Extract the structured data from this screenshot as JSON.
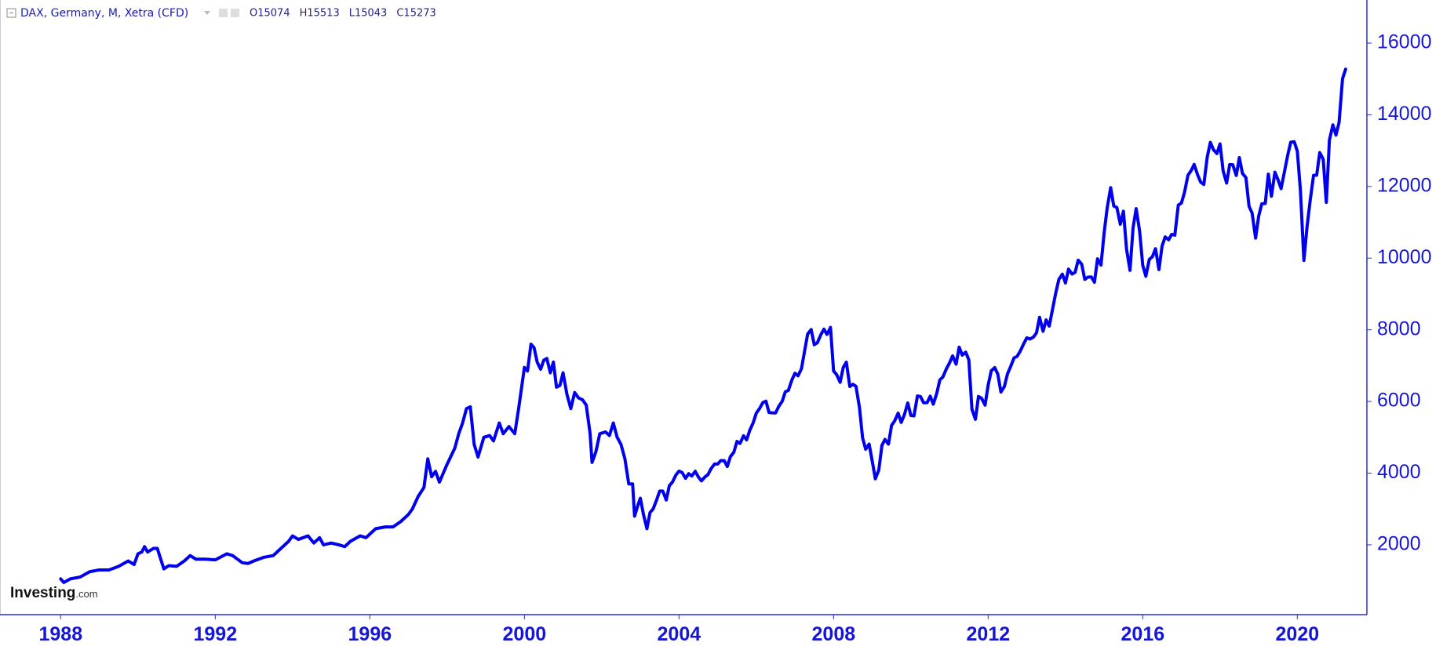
{
  "header": {
    "symbol": "DAX, Germany, M, Xetra (CFD)",
    "ohlc": [
      "O15074",
      "H15513",
      "L15043",
      "C15273"
    ]
  },
  "logo": {
    "name": "Investing",
    "suffix": ".com"
  },
  "chart_data": {
    "type": "line",
    "xlim": [
      1986.43,
      2021.8
    ],
    "ylim": [
      52,
      17203
    ],
    "xticks": [
      1988,
      1992,
      1996,
      2000,
      2004,
      2008,
      2012,
      2016,
      2020
    ],
    "yticks": [
      2000,
      4000,
      6000,
      8000,
      10000,
      12000,
      14000,
      16000
    ],
    "grid": false,
    "x": [
      1988.0,
      1988.08,
      1988.25,
      1988.5,
      1988.75,
      1989.0,
      1989.25,
      1989.5,
      1989.75,
      1989.9,
      1990.0,
      1990.1,
      1990.17,
      1990.25,
      1990.4,
      1990.5,
      1990.67,
      1990.8,
      1991.0,
      1991.2,
      1991.35,
      1991.5,
      1991.75,
      1992.0,
      1992.3,
      1992.45,
      1992.7,
      1992.85,
      1993.0,
      1993.25,
      1993.5,
      1993.7,
      1993.9,
      1994.0,
      1994.15,
      1994.4,
      1994.55,
      1994.7,
      1994.8,
      1995.0,
      1995.2,
      1995.35,
      1995.5,
      1995.75,
      1995.9,
      1996.0,
      1996.15,
      1996.4,
      1996.6,
      1996.8,
      1997.0,
      1997.1,
      1997.25,
      1997.4,
      1997.5,
      1997.6,
      1997.7,
      1997.8,
      1998.0,
      1998.2,
      1998.3,
      1998.4,
      1998.5,
      1998.6,
      1998.7,
      1998.8,
      1998.95,
      1999.1,
      1999.2,
      1999.35,
      1999.45,
      1999.6,
      1999.75,
      1999.85,
      2000.0,
      2000.08,
      2000.17,
      2000.25,
      2000.33,
      2000.42,
      2000.5,
      2000.58,
      2000.67,
      2000.75,
      2000.83,
      2000.92,
      2001.0,
      2001.1,
      2001.2,
      2001.3,
      2001.4,
      2001.5,
      2001.6,
      2001.7,
      2001.75,
      2001.85,
      2001.95,
      2002.1,
      2002.2,
      2002.3,
      2002.4,
      2002.5,
      2002.6,
      2002.7,
      2002.8,
      2002.85,
      2002.95,
      2003.0,
      2003.08,
      2003.17,
      2003.25,
      2003.33,
      2003.42,
      2003.5,
      2003.58,
      2003.67,
      2003.75,
      2003.83,
      2003.92,
      2004.0,
      2004.08,
      2004.17,
      2004.25,
      2004.33,
      2004.42,
      2004.5,
      2004.58,
      2004.67,
      2004.75,
      2004.83,
      2004.92,
      2005.0,
      2005.08,
      2005.17,
      2005.25,
      2005.33,
      2005.42,
      2005.5,
      2005.58,
      2005.67,
      2005.75,
      2005.83,
      2005.92,
      2006.0,
      2006.08,
      2006.17,
      2006.25,
      2006.33,
      2006.42,
      2006.5,
      2006.58,
      2006.67,
      2006.75,
      2006.83,
      2006.92,
      2007.0,
      2007.08,
      2007.17,
      2007.25,
      2007.33,
      2007.42,
      2007.5,
      2007.58,
      2007.67,
      2007.75,
      2007.83,
      2007.92,
      2008.0,
      2008.08,
      2008.17,
      2008.25,
      2008.33,
      2008.42,
      2008.5,
      2008.58,
      2008.67,
      2008.75,
      2008.83,
      2008.92,
      2009.0,
      2009.08,
      2009.17,
      2009.25,
      2009.33,
      2009.42,
      2009.5,
      2009.58,
      2009.67,
      2009.75,
      2009.83,
      2009.92,
      2010.0,
      2010.08,
      2010.17,
      2010.25,
      2010.33,
      2010.42,
      2010.5,
      2010.58,
      2010.67,
      2010.75,
      2010.83,
      2010.92,
      2011.0,
      2011.08,
      2011.17,
      2011.25,
      2011.33,
      2011.42,
      2011.5,
      2011.58,
      2011.67,
      2011.75,
      2011.83,
      2011.92,
      2012.0,
      2012.08,
      2012.17,
      2012.25,
      2012.33,
      2012.42,
      2012.5,
      2012.58,
      2012.67,
      2012.75,
      2012.83,
      2012.92,
      2013.0,
      2013.08,
      2013.17,
      2013.25,
      2013.33,
      2013.42,
      2013.5,
      2013.58,
      2013.67,
      2013.75,
      2013.83,
      2013.92,
      2014.0,
      2014.08,
      2014.17,
      2014.25,
      2014.33,
      2014.42,
      2014.5,
      2014.58,
      2014.67,
      2014.75,
      2014.83,
      2014.92,
      2015.0,
      2015.08,
      2015.17,
      2015.25,
      2015.33,
      2015.42,
      2015.5,
      2015.58,
      2015.67,
      2015.75,
      2015.83,
      2015.92,
      2016.0,
      2016.08,
      2016.17,
      2016.25,
      2016.33,
      2016.42,
      2016.5,
      2016.58,
      2016.67,
      2016.75,
      2016.83,
      2016.92,
      2017.0,
      2017.08,
      2017.17,
      2017.25,
      2017.33,
      2017.42,
      2017.5,
      2017.58,
      2017.67,
      2017.75,
      2017.83,
      2017.92,
      2018.0,
      2018.08,
      2018.17,
      2018.25,
      2018.33,
      2018.42,
      2018.5,
      2018.58,
      2018.67,
      2018.75,
      2018.83,
      2018.92,
      2019.0,
      2019.08,
      2019.17,
      2019.25,
      2019.33,
      2019.42,
      2019.5,
      2019.58,
      2019.67,
      2019.75,
      2019.83,
      2019.92,
      2020.0,
      2020.08,
      2020.17,
      2020.25,
      2020.33,
      2020.42,
      2020.5,
      2020.58,
      2020.67,
      2020.75,
      2020.83,
      2020.92,
      2021.0,
      2021.08,
      2021.17,
      2021.25
    ],
    "series": [
      {
        "name": "DAX",
        "color": "#0000ee",
        "values": [
          1050,
          950,
          1050,
          1100,
          1250,
          1300,
          1300,
          1400,
          1550,
          1450,
          1750,
          1800,
          1950,
          1800,
          1900,
          1900,
          1330,
          1420,
          1400,
          1550,
          1700,
          1600,
          1600,
          1580,
          1750,
          1700,
          1500,
          1480,
          1550,
          1650,
          1700,
          1900,
          2100,
          2250,
          2150,
          2250,
          2050,
          2200,
          2000,
          2050,
          2000,
          1950,
          2100,
          2250,
          2200,
          2300,
          2450,
          2500,
          2500,
          2650,
          2850,
          3000,
          3350,
          3600,
          4400,
          3900,
          4050,
          3750,
          4250,
          4700,
          5100,
          5400,
          5800,
          5850,
          4800,
          4450,
          5000,
          5050,
          4900,
          5400,
          5100,
          5300,
          5100,
          5800,
          6950,
          6850,
          7600,
          7500,
          7100,
          6900,
          7150,
          7200,
          6800,
          7100,
          6400,
          6450,
          6800,
          6200,
          5800,
          6250,
          6100,
          6050,
          5900,
          5100,
          4300,
          4600,
          5100,
          5150,
          5050,
          5400,
          5000,
          4800,
          4400,
          3700,
          3700,
          2800,
          3150,
          3300,
          2850,
          2450,
          2900,
          3000,
          3250,
          3500,
          3500,
          3250,
          3650,
          3750,
          3950,
          4058,
          4018,
          3856,
          3985,
          3921,
          4052,
          3895,
          3785,
          3893,
          3960,
          4126,
          4256,
          4254,
          4350,
          4348,
          4185,
          4460,
          4586,
          4886,
          4830,
          5044,
          4929,
          5193,
          5408,
          5674,
          5796,
          5970,
          6009,
          5692,
          5683,
          5681,
          5859,
          6004,
          6268,
          6309,
          6597,
          6789,
          6716,
          6917,
          7409,
          7883,
          8007,
          7584,
          7638,
          7862,
          8019,
          7871,
          8067,
          6851,
          6748,
          6535,
          6949,
          7096,
          6418,
          6479,
          6422,
          5831,
          4988,
          4669,
          4810,
          4338,
          3843,
          4085,
          4770,
          4941,
          4809,
          5332,
          5458,
          5675,
          5415,
          5625,
          5957,
          5608,
          5598,
          6154,
          6136,
          5965,
          5966,
          6148,
          5925,
          6229,
          6601,
          6688,
          6914,
          7077,
          7272,
          7041,
          7514,
          7294,
          7376,
          7159,
          5785,
          5502,
          6141,
          6089,
          5898,
          6458,
          6856,
          6947,
          6761,
          6264,
          6416,
          6772,
          6970,
          7216,
          7260,
          7405,
          7612,
          7776,
          7742,
          7795,
          7914,
          8349,
          7959,
          8276,
          8104,
          8594,
          9033,
          9406,
          9552,
          9306,
          9692,
          9556,
          9603,
          9943,
          9833,
          9407,
          9470,
          9474,
          9327,
          9981,
          9806,
          10694,
          11402,
          11966,
          11454,
          11413,
          10945,
          11309,
          10259,
          9660,
          10850,
          11382,
          10743,
          9798,
          9495,
          9965,
          10039,
          10263,
          9680,
          10337,
          10592,
          10511,
          10665,
          10640,
          11481,
          11535,
          11834,
          12313,
          12438,
          12615,
          12325,
          12118,
          12055,
          12829,
          13230,
          13024,
          12918,
          13189,
          12436,
          12097,
          12612,
          12605,
          12306,
          12806,
          12364,
          12247,
          11448,
          11257,
          10559,
          11173,
          11516,
          11526,
          12344,
          11727,
          12399,
          12189,
          11939,
          12428,
          12867,
          13236,
          13249,
          12982,
          11890,
          9936,
          10862,
          11587,
          12311,
          12313,
          12945,
          12761,
          11556,
          13291,
          13719,
          13433,
          13786,
          15008,
          15273
        ]
      }
    ]
  }
}
